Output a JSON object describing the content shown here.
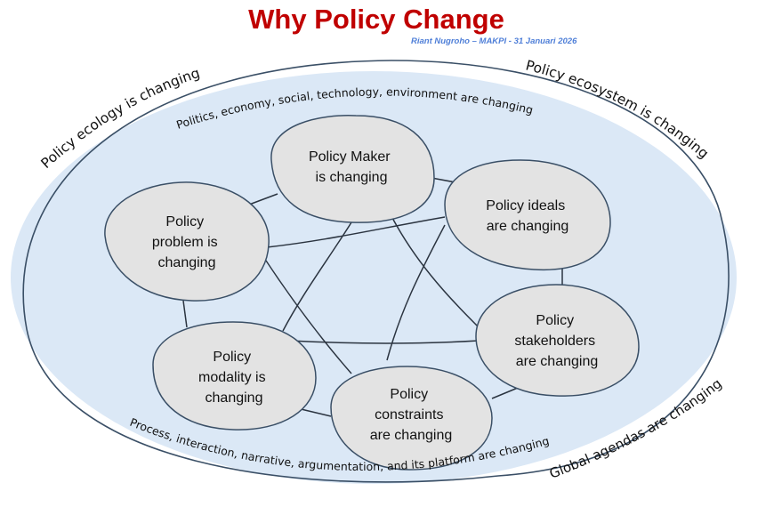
{
  "title": "Why Policy Change",
  "subtitle": "Riant Nugroho – MAKPI  - 31 Januari 2026",
  "outer_labels": {
    "top_left": "Policy ecology is changing",
    "top_right": "Policy ecosystem is changing",
    "bottom_right": "Global agendas are changing"
  },
  "inner_labels": {
    "top": "Politics, economy, social, technology, environment are changing",
    "bottom": "Process, interaction, narrative, argumentation, and its platform are changing"
  },
  "nodes": [
    {
      "id": "policy-maker",
      "lines": [
        "Policy Maker",
        "is changing"
      ]
    },
    {
      "id": "policy-ideals",
      "lines": [
        "Policy ideals",
        "are changing"
      ]
    },
    {
      "id": "policy-problem",
      "lines": [
        "Policy",
        "problem is",
        "changing"
      ]
    },
    {
      "id": "policy-stakeholders",
      "lines": [
        "Policy",
        "stakeholders",
        "are changing"
      ]
    },
    {
      "id": "policy-modality",
      "lines": [
        "Policy",
        "modality is",
        "changing"
      ]
    },
    {
      "id": "policy-constraints",
      "lines": [
        "Policy",
        "constraints",
        "are changing"
      ]
    }
  ],
  "colors": {
    "title": "#c00000",
    "subtitle": "#4f7fd8",
    "ellipse_fill": "#dbe8f6",
    "node_fill": "#e3e3e3",
    "stroke": "#3a4f66"
  }
}
